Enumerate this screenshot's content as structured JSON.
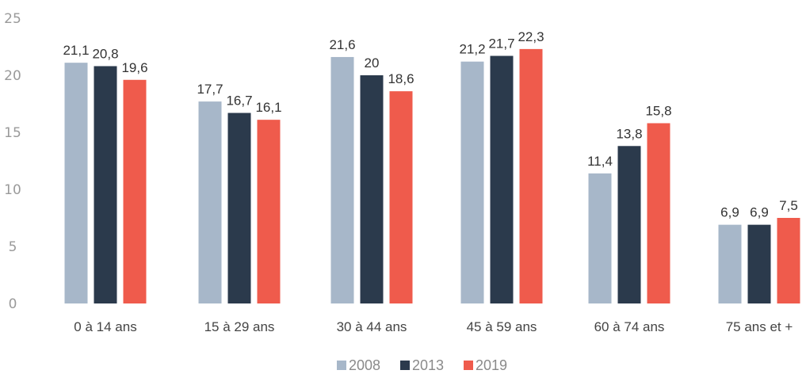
{
  "chart_data": {
    "type": "bar",
    "categories": [
      "0 à 14 ans",
      "15 à 29 ans",
      "30 à 44 ans",
      "45 à 59 ans",
      "60 à 74 ans",
      "75 ans et +"
    ],
    "series": [
      {
        "name": "2008",
        "color": "#a7b7c9",
        "values": [
          21.1,
          17.7,
          21.6,
          21.2,
          11.4,
          6.9
        ],
        "labels": [
          "21,1",
          "17,7",
          "21,6",
          "21,2",
          "11,4",
          "6,9"
        ]
      },
      {
        "name": "2013",
        "color": "#2b3a4c",
        "values": [
          20.8,
          16.7,
          20,
          21.7,
          13.8,
          6.9
        ],
        "labels": [
          "20,8",
          "16,7",
          "20",
          "21,7",
          "13,8",
          "6,9"
        ]
      },
      {
        "name": "2019",
        "color": "#ef5b4c",
        "values": [
          19.6,
          16.1,
          18.6,
          22.3,
          15.8,
          7.5
        ],
        "labels": [
          "19,6",
          "16,1",
          "18,6",
          "22,3",
          "15,8",
          "7,5"
        ]
      }
    ],
    "yticks": [
      "0",
      "5",
      "10",
      "15",
      "20",
      "25"
    ],
    "ylim": [
      0,
      25
    ],
    "grid": false,
    "legend_position": "bottom-center",
    "title": "",
    "xlabel": "",
    "ylabel": ""
  }
}
